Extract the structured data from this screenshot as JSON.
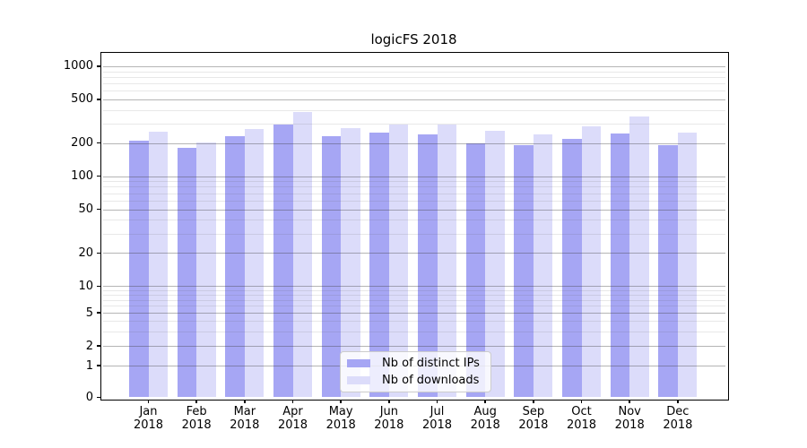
{
  "chart_data": {
    "type": "bar",
    "title": "logicFS 2018",
    "categories": [
      "Jan\n2018",
      "Feb\n2018",
      "Mar\n2018",
      "Apr\n2018",
      "May\n2018",
      "Jun\n2018",
      "Jul\n2018",
      "Aug\n2018",
      "Sep\n2018",
      "Oct\n2018",
      "Nov\n2018",
      "Dec\n2018"
    ],
    "series": [
      {
        "name": "Nb of distinct IPs",
        "color": "#a6a6f4",
        "values": [
          211,
          181,
          232,
          293,
          232,
          247,
          240,
          198,
          192,
          218,
          244,
          192
        ]
      },
      {
        "name": "Nb of downloads",
        "color": "#dcdcfa",
        "values": [
          252,
          201,
          267,
          380,
          272,
          293,
          297,
          258,
          240,
          283,
          349,
          247
        ]
      }
    ],
    "y_axis": {
      "scale": "symlog",
      "ticks": [
        0,
        1,
        2,
        5,
        10,
        20,
        50,
        100,
        200,
        500,
        1000
      ],
      "range": [
        0,
        1300
      ]
    },
    "grid": {
      "on": true,
      "major_color": "rgba(60,60,60,0.38)",
      "minor_color": "rgba(90,90,90,0.14)"
    },
    "legend": {
      "position": "lower center"
    },
    "axis_color": "#000000",
    "background_color": "#ffffff"
  }
}
